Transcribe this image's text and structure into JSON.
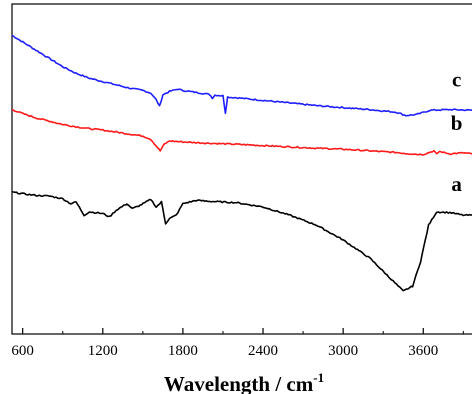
{
  "chart_data": {
    "type": "line",
    "xlabel": "Wavelength / cm",
    "xlabel_superscript": "-1",
    "ylabel": "",
    "xlim": [
      520,
      3980
    ],
    "ylim": [
      0,
      1
    ],
    "x_ticks": [
      "600",
      "1200",
      "1800",
      "2400",
      "3000",
      "3600"
    ],
    "x_tick_values": [
      600,
      1200,
      1800,
      2400,
      3000,
      3600
    ],
    "y_ticks_shown": false,
    "grid": false,
    "series": [
      {
        "name": "c",
        "color": "#1f1fff",
        "points": [
          [
            520,
            0.905
          ],
          [
            600,
            0.885
          ],
          [
            700,
            0.86
          ],
          [
            800,
            0.835
          ],
          [
            900,
            0.81
          ],
          [
            1000,
            0.79
          ],
          [
            1100,
            0.775
          ],
          [
            1200,
            0.765
          ],
          [
            1300,
            0.755
          ],
          [
            1400,
            0.745
          ],
          [
            1500,
            0.738
          ],
          [
            1560,
            0.73
          ],
          [
            1600,
            0.71
          ],
          [
            1625,
            0.69
          ],
          [
            1650,
            0.725
          ],
          [
            1700,
            0.735
          ],
          [
            1760,
            0.742
          ],
          [
            1800,
            0.738
          ],
          [
            1900,
            0.732
          ],
          [
            2000,
            0.726
          ],
          [
            2020,
            0.715
          ],
          [
            2040,
            0.724
          ],
          [
            2100,
            0.722
          ],
          [
            2118,
            0.67
          ],
          [
            2135,
            0.718
          ],
          [
            2200,
            0.716
          ],
          [
            2400,
            0.708
          ],
          [
            2600,
            0.7
          ],
          [
            2800,
            0.692
          ],
          [
            3000,
            0.686
          ],
          [
            3200,
            0.68
          ],
          [
            3400,
            0.672
          ],
          [
            3470,
            0.662
          ],
          [
            3550,
            0.665
          ],
          [
            3650,
            0.678
          ],
          [
            3800,
            0.68
          ],
          [
            3980,
            0.678
          ]
        ]
      },
      {
        "name": "b",
        "color": "#ff1a1a",
        "points": [
          [
            520,
            0.68
          ],
          [
            600,
            0.668
          ],
          [
            700,
            0.655
          ],
          [
            800,
            0.645
          ],
          [
            900,
            0.635
          ],
          [
            1000,
            0.628
          ],
          [
            1100,
            0.622
          ],
          [
            1200,
            0.618
          ],
          [
            1300,
            0.612
          ],
          [
            1400,
            0.606
          ],
          [
            1500,
            0.6
          ],
          [
            1560,
            0.59
          ],
          [
            1600,
            0.57
          ],
          [
            1630,
            0.555
          ],
          [
            1660,
            0.575
          ],
          [
            1700,
            0.585
          ],
          [
            1800,
            0.582
          ],
          [
            2000,
            0.578
          ],
          [
            2200,
            0.575
          ],
          [
            2400,
            0.571
          ],
          [
            2600,
            0.567
          ],
          [
            2800,
            0.563
          ],
          [
            3000,
            0.56
          ],
          [
            3200,
            0.555
          ],
          [
            3400,
            0.55
          ],
          [
            3500,
            0.546
          ],
          [
            3600,
            0.544
          ],
          [
            3680,
            0.555
          ],
          [
            3700,
            0.545
          ],
          [
            3720,
            0.553
          ],
          [
            3800,
            0.546
          ],
          [
            3900,
            0.549
          ],
          [
            3980,
            0.545
          ]
        ]
      },
      {
        "name": "a",
        "color": "#000000",
        "points": [
          [
            520,
            0.43
          ],
          [
            600,
            0.425
          ],
          [
            700,
            0.42
          ],
          [
            800,
            0.418
          ],
          [
            900,
            0.41
          ],
          [
            960,
            0.395
          ],
          [
            1000,
            0.4
          ],
          [
            1060,
            0.36
          ],
          [
            1100,
            0.37
          ],
          [
            1200,
            0.365
          ],
          [
            1250,
            0.355
          ],
          [
            1300,
            0.375
          ],
          [
            1380,
            0.395
          ],
          [
            1420,
            0.38
          ],
          [
            1480,
            0.39
          ],
          [
            1560,
            0.408
          ],
          [
            1600,
            0.385
          ],
          [
            1640,
            0.4
          ],
          [
            1670,
            0.335
          ],
          [
            1700,
            0.35
          ],
          [
            1750,
            0.36
          ],
          [
            1800,
            0.395
          ],
          [
            1900,
            0.405
          ],
          [
            2000,
            0.402
          ],
          [
            2200,
            0.398
          ],
          [
            2400,
            0.385
          ],
          [
            2600,
            0.36
          ],
          [
            2800,
            0.33
          ],
          [
            3000,
            0.285
          ],
          [
            3200,
            0.23
          ],
          [
            3350,
            0.17
          ],
          [
            3450,
            0.13
          ],
          [
            3520,
            0.145
          ],
          [
            3580,
            0.22
          ],
          [
            3640,
            0.33
          ],
          [
            3700,
            0.37
          ],
          [
            3800,
            0.368
          ],
          [
            3900,
            0.36
          ],
          [
            3980,
            0.36
          ]
        ]
      }
    ]
  }
}
